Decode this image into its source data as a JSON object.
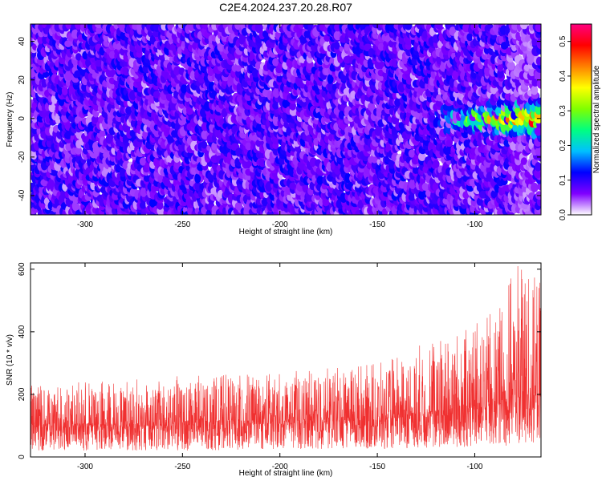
{
  "title": "C2E4.2024.237.20.28.R07",
  "chart_data": [
    {
      "type": "heatmap",
      "xlabel": "Height of straight line (km)",
      "ylabel": "Frequency (Hz)",
      "xlim": [
        -328,
        -66
      ],
      "ylim": [
        -50,
        49
      ],
      "xticks": [
        -300,
        -250,
        -200,
        -150,
        -100
      ],
      "yticks": [
        -40,
        -20,
        0,
        20,
        40
      ],
      "colorbar": {
        "label": "Normalized spectral amplitude",
        "range": [
          0,
          0.55
        ],
        "ticks": [
          0,
          0.1,
          0.2,
          0.3,
          0.4,
          0.5
        ],
        "colors": [
          "#ffffff",
          "#8000ff",
          "#0000ff",
          "#00c0ff",
          "#00ff80",
          "#80ff00",
          "#ffff00",
          "#ff8000",
          "#ff0000",
          "#ff0080"
        ]
      },
      "description_values": {
        "background_level": 0.05,
        "signal_band_center_hz": 0,
        "signal_band_start_km": -125,
        "signal_peak_km": -80,
        "signal_peak_level": 0.4
      }
    },
    {
      "type": "line",
      "xlabel": "Height of straight line (km)",
      "ylabel": "SNR (10 * v/v)",
      "xlim": [
        -328,
        -66
      ],
      "ylim": [
        0,
        620
      ],
      "xticks": [
        -300,
        -250,
        -200,
        -150,
        -100
      ],
      "yticks": [
        0,
        200,
        400,
        600
      ],
      "color": "#f03030",
      "envelope": [
        {
          "x": -328,
          "low": 20,
          "mean": 95,
          "high": 230
        },
        {
          "x": -300,
          "low": 20,
          "mean": 95,
          "high": 240
        },
        {
          "x": -250,
          "low": 20,
          "mean": 100,
          "high": 260
        },
        {
          "x": -200,
          "low": 25,
          "mean": 105,
          "high": 270
        },
        {
          "x": -150,
          "low": 25,
          "mean": 115,
          "high": 300
        },
        {
          "x": -120,
          "low": 30,
          "mean": 130,
          "high": 380
        },
        {
          "x": -100,
          "low": 30,
          "mean": 145,
          "high": 420
        },
        {
          "x": -85,
          "low": 35,
          "mean": 170,
          "high": 520
        },
        {
          "x": -78,
          "low": 40,
          "mean": 190,
          "high": 620
        },
        {
          "x": -66,
          "low": 40,
          "mean": 180,
          "high": 560
        }
      ]
    }
  ]
}
